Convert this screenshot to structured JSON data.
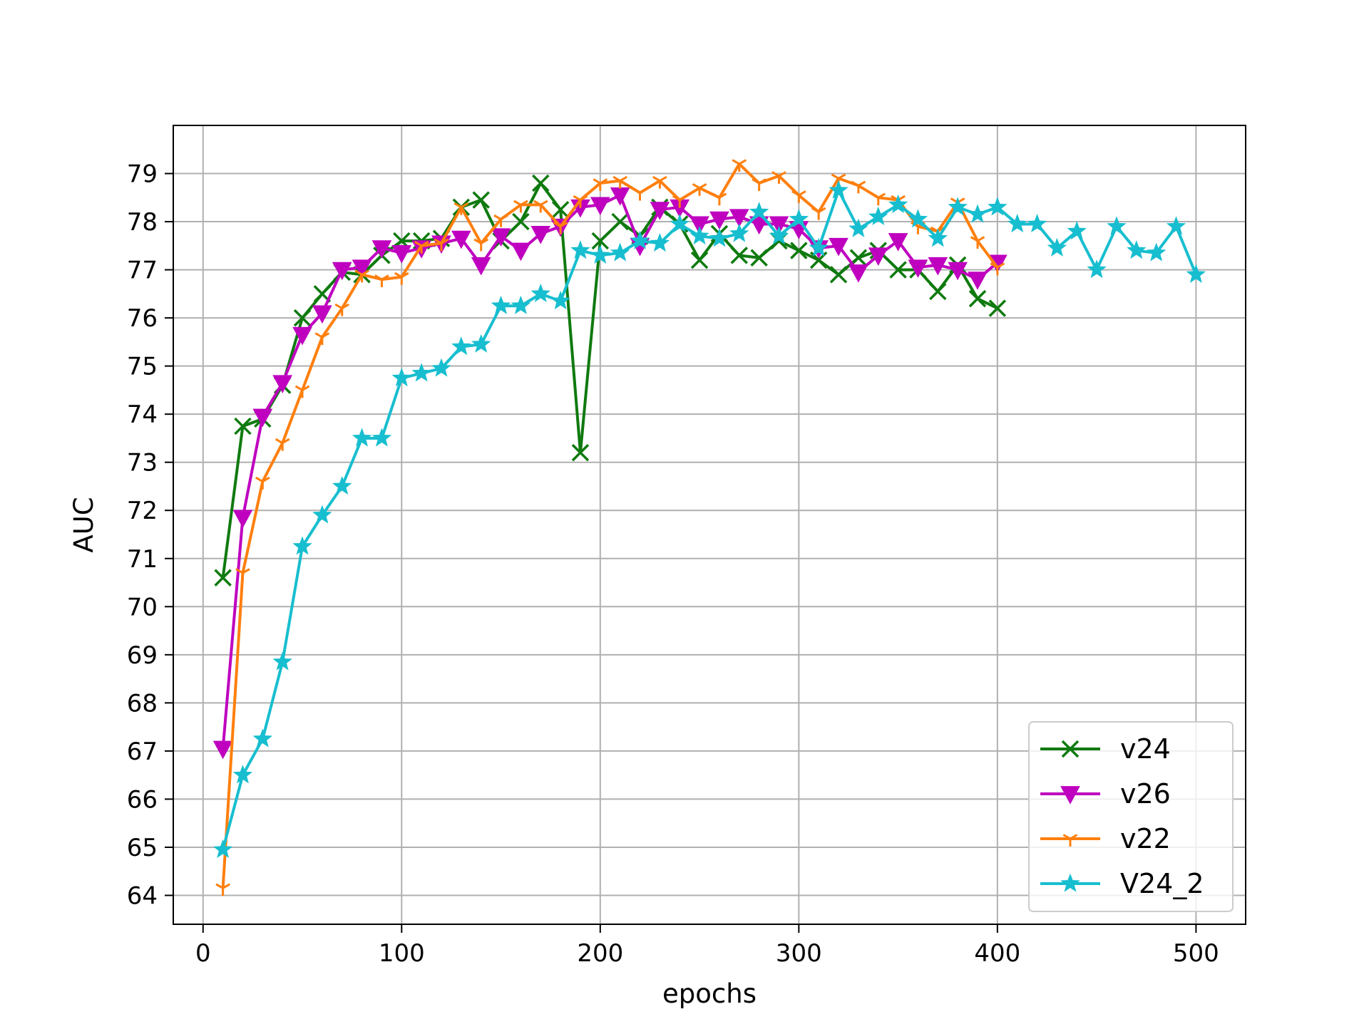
{
  "chart_data": {
    "type": "line",
    "title": "",
    "xlabel": "epochs",
    "ylabel": "AUC",
    "xlim": [
      -15,
      525
    ],
    "ylim": [
      63.4,
      80.0
    ],
    "xticks": [
      0,
      100,
      200,
      300,
      400,
      500
    ],
    "yticks": [
      64,
      65,
      66,
      67,
      68,
      69,
      70,
      71,
      72,
      73,
      74,
      75,
      76,
      77,
      78,
      79
    ],
    "grid": true,
    "legend_position": "bottom-right",
    "series": [
      {
        "name": "v24",
        "color": "#0f7a0f",
        "marker": "x",
        "x": [
          10,
          20,
          30,
          40,
          50,
          60,
          70,
          80,
          90,
          100,
          110,
          120,
          130,
          140,
          150,
          160,
          170,
          180,
          190,
          200,
          210,
          220,
          230,
          240,
          250,
          260,
          270,
          280,
          290,
          300,
          310,
          320,
          330,
          340,
          350,
          360,
          370,
          380,
          390,
          400
        ],
        "y": [
          70.6,
          73.75,
          73.9,
          74.6,
          76.0,
          76.5,
          76.95,
          76.9,
          77.3,
          77.6,
          77.6,
          77.65,
          78.3,
          78.45,
          77.6,
          78.0,
          78.8,
          78.25,
          73.2,
          77.6,
          78.0,
          77.7,
          78.3,
          77.95,
          77.2,
          77.75,
          77.3,
          77.25,
          77.6,
          77.4,
          77.2,
          76.9,
          77.25,
          77.4,
          77.0,
          77.0,
          76.55,
          77.1,
          76.4,
          76.2
        ]
      },
      {
        "name": "v26",
        "color": "#bf00bf",
        "marker": "triangle-down",
        "x": [
          10,
          20,
          30,
          40,
          50,
          60,
          70,
          80,
          90,
          100,
          110,
          120,
          130,
          140,
          150,
          160,
          170,
          180,
          190,
          200,
          210,
          220,
          230,
          240,
          250,
          260,
          270,
          280,
          290,
          300,
          310,
          320,
          330,
          340,
          350,
          360,
          370,
          380,
          390,
          400
        ],
        "y": [
          67.05,
          71.85,
          73.95,
          74.65,
          75.65,
          76.1,
          77.0,
          77.05,
          77.45,
          77.35,
          77.45,
          77.55,
          77.65,
          77.1,
          77.7,
          77.4,
          77.75,
          77.9,
          78.3,
          78.35,
          78.55,
          77.5,
          78.25,
          78.3,
          77.95,
          78.05,
          78.1,
          77.95,
          77.95,
          77.85,
          77.45,
          77.5,
          76.95,
          77.3,
          77.6,
          77.05,
          77.1,
          77.0,
          76.8,
          77.15
        ]
      },
      {
        "name": "v22",
        "color": "#ff7f0e",
        "marker": "tri-down",
        "x": [
          10,
          20,
          30,
          40,
          50,
          60,
          70,
          80,
          90,
          100,
          110,
          120,
          130,
          140,
          150,
          160,
          170,
          180,
          190,
          200,
          210,
          220,
          230,
          240,
          250,
          260,
          270,
          280,
          290,
          300,
          310,
          320,
          330,
          340,
          350,
          360,
          370,
          380,
          390,
          400
        ],
        "y": [
          64.15,
          70.7,
          72.6,
          73.4,
          74.5,
          75.6,
          76.2,
          76.9,
          76.8,
          76.85,
          77.5,
          77.55,
          78.3,
          77.55,
          78.05,
          78.35,
          78.35,
          77.9,
          78.45,
          78.8,
          78.85,
          78.6,
          78.85,
          78.45,
          78.7,
          78.5,
          79.2,
          78.8,
          78.95,
          78.55,
          78.2,
          78.9,
          78.75,
          78.5,
          78.45,
          77.9,
          77.8,
          78.4,
          77.6,
          77.05
        ]
      },
      {
        "name": "V24_2",
        "color": "#17becf",
        "marker": "star",
        "x": [
          10,
          20,
          30,
          40,
          50,
          60,
          70,
          80,
          90,
          100,
          110,
          120,
          130,
          140,
          150,
          160,
          170,
          180,
          190,
          200,
          210,
          220,
          230,
          240,
          250,
          260,
          270,
          280,
          290,
          300,
          310,
          320,
          330,
          340,
          350,
          360,
          370,
          380,
          390,
          400,
          410,
          420,
          430,
          440,
          450,
          460,
          470,
          480,
          490,
          500
        ],
        "y": [
          64.95,
          66.5,
          67.25,
          68.85,
          71.25,
          71.9,
          72.5,
          73.5,
          73.5,
          74.75,
          74.85,
          74.95,
          75.4,
          75.45,
          76.25,
          76.25,
          76.5,
          76.35,
          77.4,
          77.3,
          77.35,
          77.6,
          77.55,
          77.95,
          77.7,
          77.65,
          77.75,
          78.2,
          77.7,
          78.05,
          77.45,
          78.65,
          77.85,
          78.1,
          78.35,
          78.05,
          77.65,
          78.3,
          78.15,
          78.3,
          77.95,
          77.95,
          77.45,
          77.8,
          77.0,
          77.9,
          77.4,
          77.35,
          77.9,
          76.9
        ]
      }
    ]
  }
}
